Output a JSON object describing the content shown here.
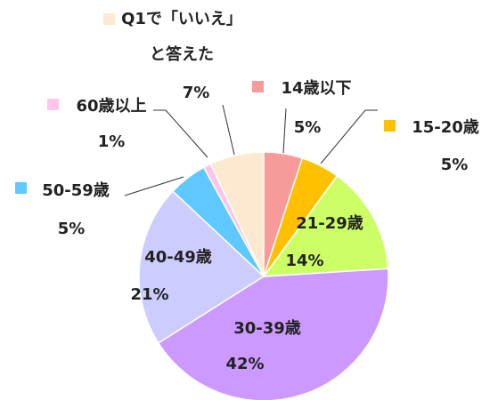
{
  "chart_data": {
    "type": "pie",
    "categories": [
      "14歳以下",
      "15-20歳",
      "21-29歳",
      "30-39歳",
      "40-49歳",
      "50-59歳",
      "60歳以上",
      "Q1で「いいえ」と答えた"
    ],
    "values": [
      5,
      5,
      14,
      42,
      21,
      5,
      1,
      7
    ],
    "colors": [
      "#f79a9a",
      "#ffc000",
      "#ccff66",
      "#cc99ff",
      "#ccccff",
      "#5ec8ff",
      "#ffc4e8",
      "#fde9d0"
    ]
  }
}
